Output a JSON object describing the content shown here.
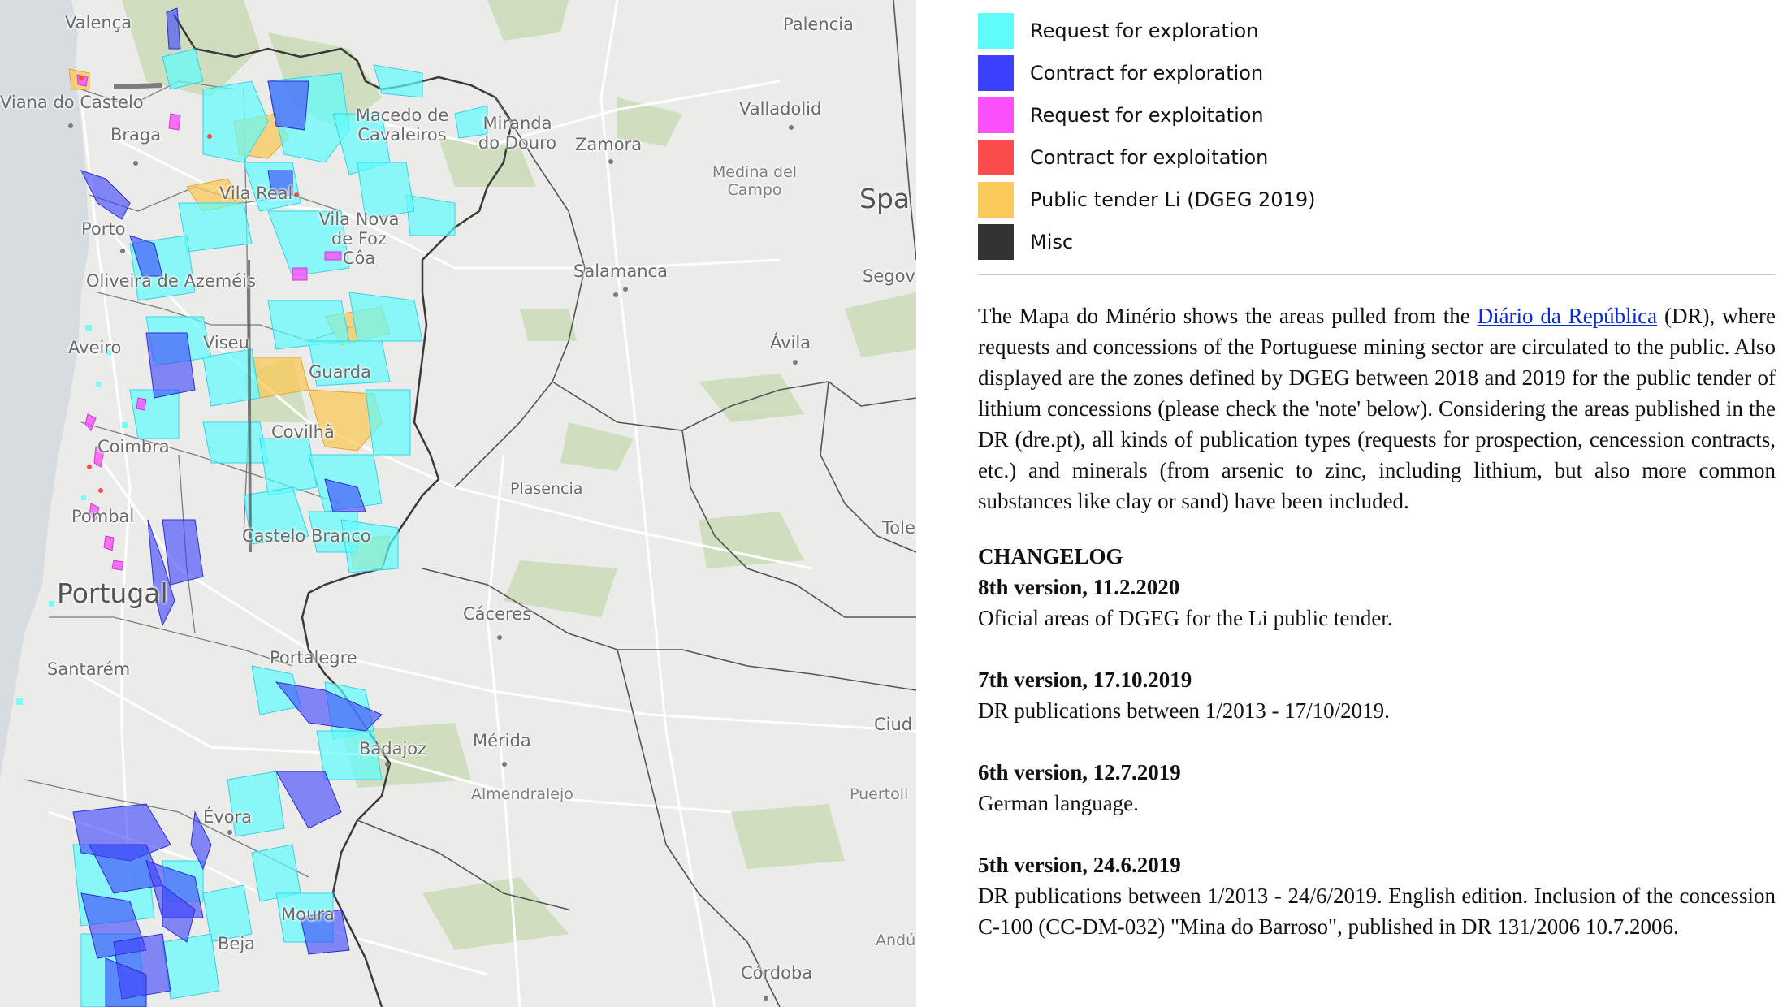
{
  "map": {
    "cities": [
      {
        "name": "Valença"
      },
      {
        "name": "Viana do Castelo"
      },
      {
        "name": "Braga"
      },
      {
        "name": "Porto"
      },
      {
        "name": "Oliveira de Azeméis"
      },
      {
        "name": "Aveiro"
      },
      {
        "name": "Viseu"
      },
      {
        "name": "Guarda"
      },
      {
        "name": "Covilhã"
      },
      {
        "name": "Coimbra"
      },
      {
        "name": "Pombal"
      },
      {
        "name": "Castelo Branco"
      },
      {
        "name": "Portugal"
      },
      {
        "name": "Santarém"
      },
      {
        "name": "Portalegre"
      },
      {
        "name": "Badajoz"
      },
      {
        "name": "Évora"
      },
      {
        "name": "Moura"
      },
      {
        "name": "Beja"
      },
      {
        "name": "Vila Real"
      },
      {
        "name": "Vila Nova de Foz Côa"
      },
      {
        "name": "Macedo de Cavaleiros"
      },
      {
        "name": "Miranda do Douro"
      },
      {
        "name": "Zamora"
      },
      {
        "name": "Palencia"
      },
      {
        "name": "Valladolid"
      },
      {
        "name": "Medina del Campo"
      },
      {
        "name": "Spa"
      },
      {
        "name": "Salamanca"
      },
      {
        "name": "Segov"
      },
      {
        "name": "Ávila"
      },
      {
        "name": "Plasencia"
      },
      {
        "name": "Tole"
      },
      {
        "name": "Cáceres"
      },
      {
        "name": "Mérida"
      },
      {
        "name": "Almendralejo"
      },
      {
        "name": "Ciud"
      },
      {
        "name": "Puertoll"
      },
      {
        "name": "Andú"
      },
      {
        "name": "Córdoba"
      }
    ]
  },
  "legend": [
    {
      "label": "Request for exploration",
      "color": "#5ffcfc"
    },
    {
      "label": "Contract for exploration",
      "color": "#3a40fb"
    },
    {
      "label": "Request for exploitation",
      "color": "#fb4ffb"
    },
    {
      "label": "Contract for exploitation",
      "color": "#fb4b4b"
    },
    {
      "label": "Public tender Li (DGEG 2019)",
      "color": "#fbc95a"
    },
    {
      "label": "Misc",
      "color": "#333333"
    }
  ],
  "intro": {
    "before_link": "The Mapa do Minério shows the areas pulled from the ",
    "link_text": "Diário da República",
    "after_link": " (DR), where requests and concessions of the Portuguese mining sector are circulated to the public. Also displayed are the zones defined by DGEG between 2018 and 2019 for the public tender of lithium concessions (please check the 'note' below). Considering the areas published in the DR (dre.pt), all kinds of publication types (requests for prospection, cencession contracts, etc.) and minerals (from arsenic to zinc, including lithium, but also more common substances like clay or sand) have been included."
  },
  "changelog": {
    "heading": "CHANGELOG",
    "entries": [
      {
        "version": "8th version, 11.2.2020",
        "text": "Oficial areas of DGEG for the Li public tender."
      },
      {
        "version": "7th version, 17.10.2019",
        "text": "DR publications between 1/2013 - 17/10/2019."
      },
      {
        "version": "6th version, 12.7.2019",
        "text": "German language."
      },
      {
        "version": "5th version, 24.6.2019",
        "text": "DR publications between 1/2013 - 24/6/2019. English edition. Inclusion of the concession C-100 (CC-DM-032) \"Mina do Barroso\", published in DR 131/2006 10.7.2006."
      }
    ]
  }
}
